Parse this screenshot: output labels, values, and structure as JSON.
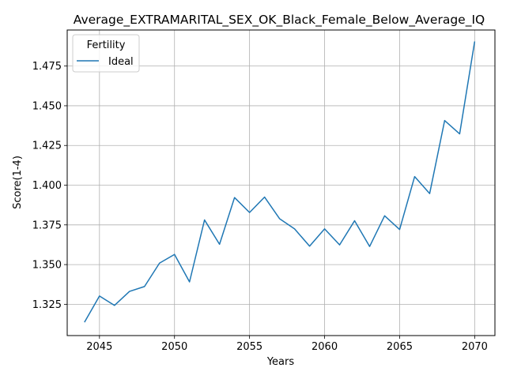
{
  "chart_data": {
    "type": "line",
    "title": "Average_EXTRAMARITAL_SEX_OK_Black_Female_Below_Average_IQ",
    "xlabel": "Years",
    "ylabel": "Score(1-4)",
    "xlim": [
      2042.85,
      2071.35
    ],
    "ylim": [
      1.3053,
      1.4977
    ],
    "xticks": [
      2045,
      2050,
      2055,
      2060,
      2065,
      2070
    ],
    "yticks": [
      1.325,
      1.35,
      1.375,
      1.4,
      1.425,
      1.45,
      1.475
    ],
    "ytick_labels": [
      "1.325",
      "1.350",
      "1.375",
      "1.400",
      "1.425",
      "1.450",
      "1.475"
    ],
    "grid": true,
    "legend": {
      "title": "Fertility",
      "placement": "top-left"
    },
    "series": [
      {
        "name": "Ideal",
        "color": "#1f77b4",
        "x": [
          2044,
          2045,
          2046,
          2047,
          2048,
          2049,
          2050,
          2051,
          2052,
          2053,
          2054,
          2055,
          2056,
          2057,
          2058,
          2059,
          2060,
          2061,
          2062,
          2063,
          2064,
          2065,
          2066,
          2067,
          2068,
          2069,
          2070
        ],
        "values": [
          1.3137,
          1.3302,
          1.3243,
          1.3331,
          1.3362,
          1.3509,
          1.3564,
          1.3391,
          1.3781,
          1.3628,
          1.3922,
          1.3828,
          1.3925,
          1.3789,
          1.3725,
          1.3616,
          1.3725,
          1.3624,
          1.3776,
          1.3614,
          1.3807,
          1.3721,
          1.4054,
          1.3947,
          1.4407,
          1.4323,
          1.4905
        ]
      }
    ]
  }
}
